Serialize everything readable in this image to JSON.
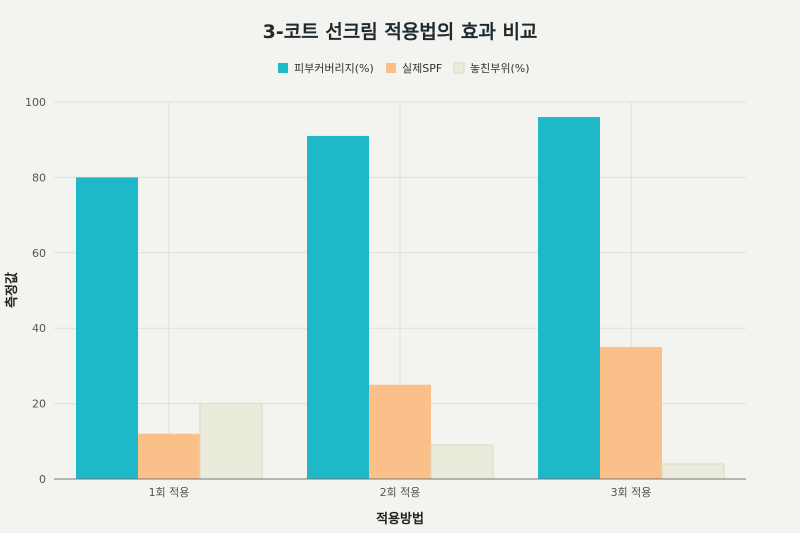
{
  "chart_data": {
    "type": "bar",
    "title": "3-코트 선크림 적용법의 효과 비교",
    "xlabel": "적용방법",
    "ylabel": "측정값",
    "categories": [
      "1회 적용",
      "2회 적용",
      "3회 적용"
    ],
    "series": [
      {
        "name": "피부커버리지(%)",
        "values": [
          80,
          91,
          96
        ],
        "color": "#1fb8c9"
      },
      {
        "name": "실제SPF",
        "values": [
          12,
          25,
          35
        ],
        "color": "#fbc08a"
      },
      {
        "name": "놓친부위(%)",
        "values": [
          20,
          9,
          4
        ],
        "color": "#ebebdc"
      }
    ],
    "ylim": [
      0,
      100
    ],
    "yticks": [
      0,
      20,
      40,
      60,
      80,
      100
    ],
    "legend_position": "top-center",
    "grid": true
  }
}
